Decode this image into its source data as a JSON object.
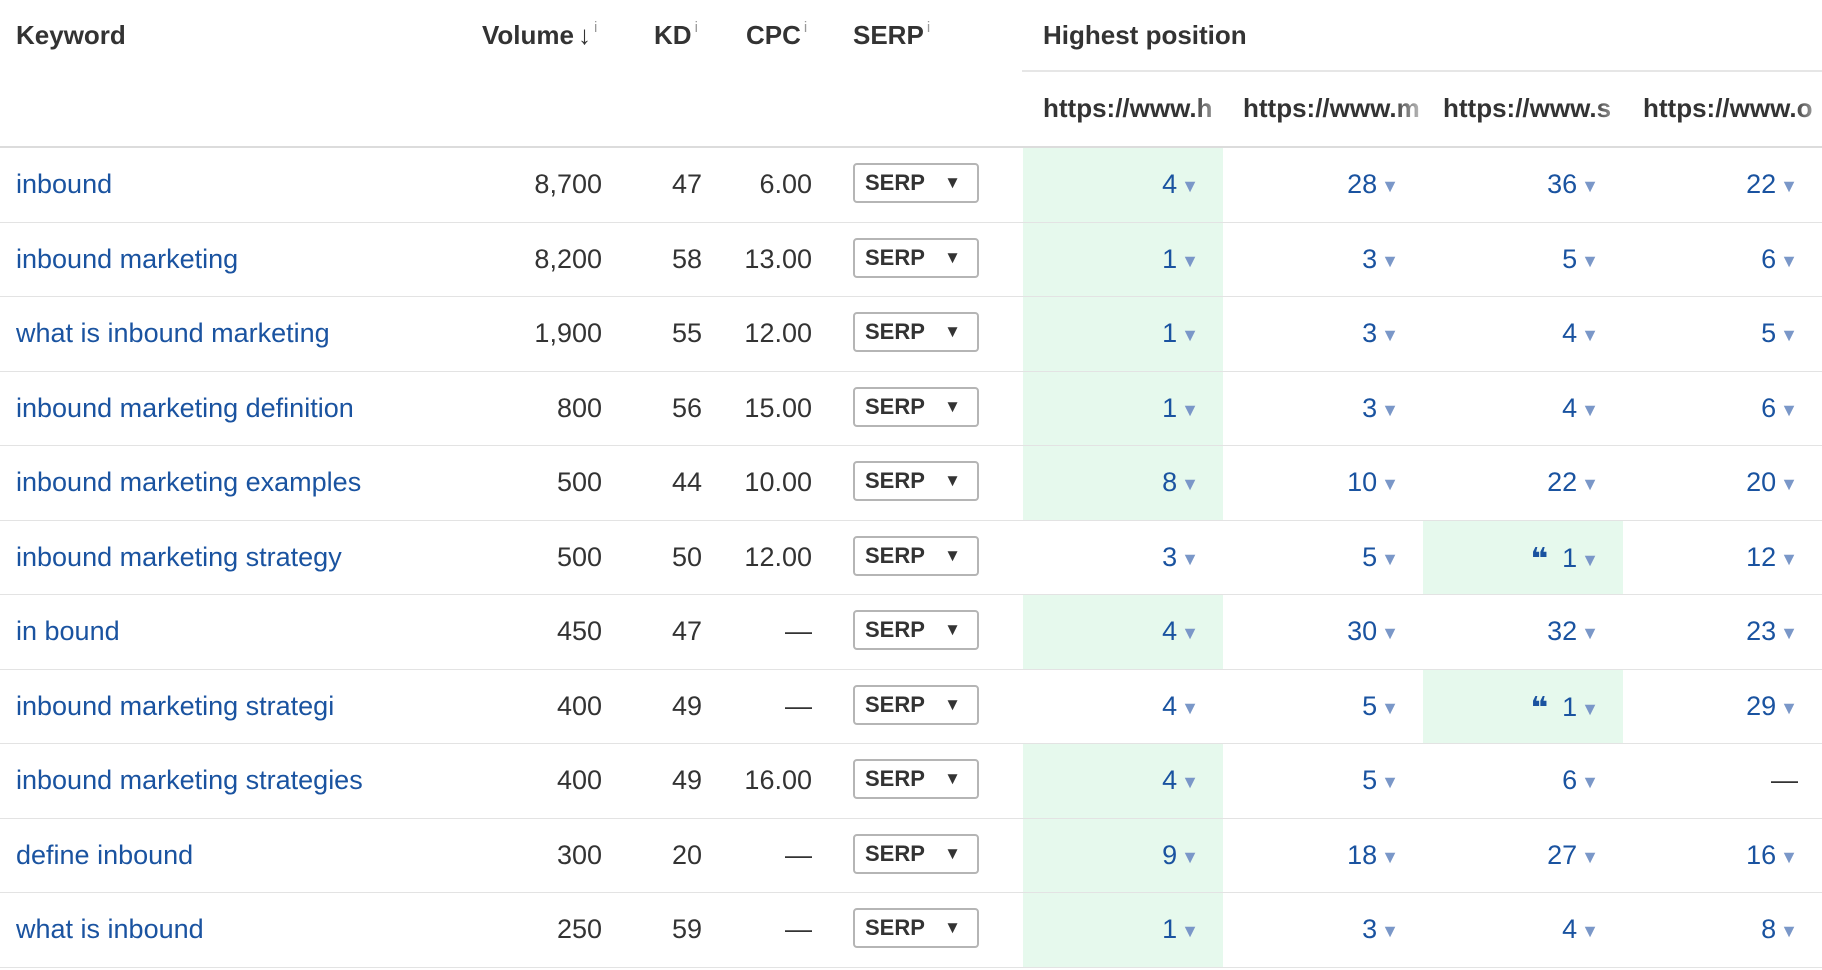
{
  "columns": {
    "keyword": "Keyword",
    "volume": "Volume",
    "sort_icon": "↓",
    "kd": "KD",
    "cpc": "CPC",
    "serp": "SERP",
    "info": "i",
    "highest_position": "Highest position"
  },
  "urls": [
    "https://www.h",
    "https://www.m",
    "https://www.s",
    "https://www.o"
  ],
  "serp_button": {
    "label": "SERP",
    "arrow": "▼"
  },
  "caret": "▼",
  "quote_icon": "❝",
  "highlight_color": "#e6f9ed",
  "link_color": "#1a53a0",
  "rows": [
    {
      "keyword": "inbound",
      "volume": "8,700",
      "kd": "47",
      "cpc": "6.00",
      "positions": [
        {
          "v": "4",
          "hl": true
        },
        {
          "v": "28"
        },
        {
          "v": "36"
        },
        {
          "v": "22"
        }
      ]
    },
    {
      "keyword": "inbound marketing",
      "volume": "8,200",
      "kd": "58",
      "cpc": "13.00",
      "positions": [
        {
          "v": "1",
          "hl": true
        },
        {
          "v": "3"
        },
        {
          "v": "5"
        },
        {
          "v": "6"
        }
      ]
    },
    {
      "keyword": "what is inbound marketing",
      "volume": "1,900",
      "kd": "55",
      "cpc": "12.00",
      "positions": [
        {
          "v": "1",
          "hl": true
        },
        {
          "v": "3"
        },
        {
          "v": "4"
        },
        {
          "v": "5"
        }
      ]
    },
    {
      "keyword": "inbound marketing definition",
      "volume": "800",
      "kd": "56",
      "cpc": "15.00",
      "positions": [
        {
          "v": "1",
          "hl": true
        },
        {
          "v": "3"
        },
        {
          "v": "4"
        },
        {
          "v": "6"
        }
      ]
    },
    {
      "keyword": "inbound marketing examples",
      "volume": "500",
      "kd": "44",
      "cpc": "10.00",
      "positions": [
        {
          "v": "8",
          "hl": true
        },
        {
          "v": "10"
        },
        {
          "v": "22"
        },
        {
          "v": "20"
        }
      ]
    },
    {
      "keyword": "inbound marketing strategy",
      "volume": "500",
      "kd": "50",
      "cpc": "12.00",
      "positions": [
        {
          "v": "3"
        },
        {
          "v": "5"
        },
        {
          "v": "1",
          "hl": true,
          "quote": true
        },
        {
          "v": "12"
        }
      ]
    },
    {
      "keyword": "in bound",
      "volume": "450",
      "kd": "47",
      "cpc": "—",
      "positions": [
        {
          "v": "4",
          "hl": true
        },
        {
          "v": "30"
        },
        {
          "v": "32"
        },
        {
          "v": "23"
        }
      ]
    },
    {
      "keyword": "inbound marketing strategi",
      "volume": "400",
      "kd": "49",
      "cpc": "—",
      "positions": [
        {
          "v": "4"
        },
        {
          "v": "5"
        },
        {
          "v": "1",
          "hl": true,
          "quote": true
        },
        {
          "v": "29"
        }
      ]
    },
    {
      "keyword": "inbound marketing strategies",
      "volume": "400",
      "kd": "49",
      "cpc": "16.00",
      "positions": [
        {
          "v": "4",
          "hl": true
        },
        {
          "v": "5"
        },
        {
          "v": "6"
        },
        {
          "v": "—",
          "dash": true
        }
      ]
    },
    {
      "keyword": "define inbound",
      "volume": "300",
      "kd": "20",
      "cpc": "—",
      "positions": [
        {
          "v": "9",
          "hl": true
        },
        {
          "v": "18"
        },
        {
          "v": "27"
        },
        {
          "v": "16"
        }
      ]
    },
    {
      "keyword": "what is inbound",
      "volume": "250",
      "kd": "59",
      "cpc": "—",
      "positions": [
        {
          "v": "1",
          "hl": true
        },
        {
          "v": "3"
        },
        {
          "v": "4"
        },
        {
          "v": "8"
        }
      ]
    }
  ]
}
